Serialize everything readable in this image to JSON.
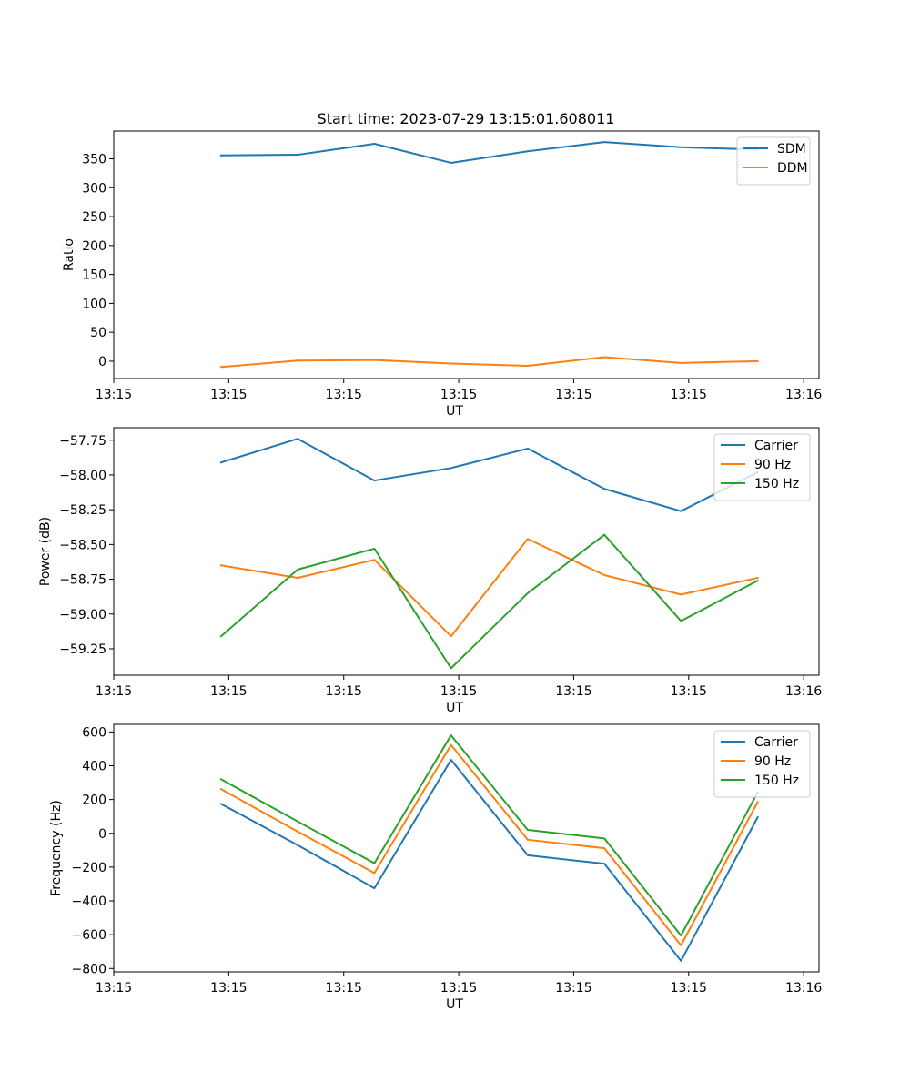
{
  "figure": {
    "title": "Start time: 2023-07-29 13:15:01.608011"
  },
  "chart_data": [
    {
      "type": "line",
      "xlabel": "UT",
      "ylabel": "Ratio",
      "x": [
        7,
        12,
        17,
        22,
        27,
        32,
        37,
        42
      ],
      "xlim": [
        0,
        46
      ],
      "ylim": [
        -30,
        398
      ],
      "x_ticks": [
        {
          "value": 0,
          "label": "13:15"
        },
        {
          "value": 7.5,
          "label": "13:15"
        },
        {
          "value": 15,
          "label": "13:15"
        },
        {
          "value": 22.5,
          "label": "13:15"
        },
        {
          "value": 30,
          "label": "13:15"
        },
        {
          "value": 37.5,
          "label": "13:15"
        },
        {
          "value": 45,
          "label": "13:16"
        }
      ],
      "y_ticks": [
        {
          "value": 0,
          "label": "0"
        },
        {
          "value": 50,
          "label": "50"
        },
        {
          "value": 100,
          "label": "100"
        },
        {
          "value": 150,
          "label": "150"
        },
        {
          "value": 200,
          "label": "200"
        },
        {
          "value": 250,
          "label": "250"
        },
        {
          "value": 300,
          "label": "300"
        },
        {
          "value": 350,
          "label": "350"
        }
      ],
      "legend": "top-right",
      "series": [
        {
          "name": "SDM",
          "color": "#1f77b4",
          "values": [
            356,
            357,
            376,
            343,
            363,
            379,
            370,
            366
          ]
        },
        {
          "name": "DDM",
          "color": "#ff7f0e",
          "values": [
            -10,
            1,
            2,
            -4,
            -8,
            7,
            -3,
            0
          ]
        }
      ]
    },
    {
      "type": "line",
      "xlabel": "UT",
      "ylabel": "Power (dB)",
      "x": [
        7,
        12,
        17,
        22,
        27,
        32,
        37,
        42
      ],
      "xlim": [
        0,
        46
      ],
      "ylim": [
        -59.44,
        -57.66
      ],
      "x_ticks": [
        {
          "value": 0,
          "label": "13:15"
        },
        {
          "value": 7.5,
          "label": "13:15"
        },
        {
          "value": 15,
          "label": "13:15"
        },
        {
          "value": 22.5,
          "label": "13:15"
        },
        {
          "value": 30,
          "label": "13:15"
        },
        {
          "value": 37.5,
          "label": "13:15"
        },
        {
          "value": 45,
          "label": "13:16"
        }
      ],
      "y_ticks": [
        {
          "value": -59.25,
          "label": "−59.25"
        },
        {
          "value": -59.0,
          "label": "−59.00"
        },
        {
          "value": -58.75,
          "label": "−58.75"
        },
        {
          "value": -58.5,
          "label": "−58.50"
        },
        {
          "value": -58.25,
          "label": "−58.25"
        },
        {
          "value": -58.0,
          "label": "−58.00"
        },
        {
          "value": -57.75,
          "label": "−57.75"
        }
      ],
      "legend": "top-right",
      "series": [
        {
          "name": "Carrier",
          "color": "#1f77b4",
          "values": [
            -57.91,
            -57.74,
            -58.04,
            -57.95,
            -57.81,
            -58.1,
            -58.26,
            -57.98
          ]
        },
        {
          "name": "90 Hz",
          "color": "#ff7f0e",
          "values": [
            -58.65,
            -58.74,
            -58.61,
            -59.16,
            -58.46,
            -58.72,
            -58.86,
            -58.74
          ]
        },
        {
          "name": "150 Hz",
          "color": "#2ca02c",
          "values": [
            -59.16,
            -58.68,
            -58.53,
            -59.39,
            -58.85,
            -58.43,
            -59.05,
            -58.76
          ]
        }
      ]
    },
    {
      "type": "line",
      "xlabel": "UT",
      "ylabel": "Frequency (Hz)",
      "x": [
        7,
        12,
        17,
        22,
        27,
        32,
        37,
        42
      ],
      "xlim": [
        0,
        46
      ],
      "ylim": [
        -820,
        645
      ],
      "x_ticks": [
        {
          "value": 0,
          "label": "13:15"
        },
        {
          "value": 7.5,
          "label": "13:15"
        },
        {
          "value": 15,
          "label": "13:15"
        },
        {
          "value": 22.5,
          "label": "13:15"
        },
        {
          "value": 30,
          "label": "13:15"
        },
        {
          "value": 37.5,
          "label": "13:15"
        },
        {
          "value": 45,
          "label": "13:16"
        }
      ],
      "y_ticks": [
        {
          "value": -800,
          "label": "−800"
        },
        {
          "value": -600,
          "label": "−600"
        },
        {
          "value": -400,
          "label": "−400"
        },
        {
          "value": -200,
          "label": "−200"
        },
        {
          "value": 0,
          "label": "0"
        },
        {
          "value": 200,
          "label": "200"
        },
        {
          "value": 400,
          "label": "400"
        },
        {
          "value": 600,
          "label": "600"
        }
      ],
      "legend": "top-right",
      "series": [
        {
          "name": "Carrier",
          "color": "#1f77b4",
          "values": [
            174,
            -70,
            -325,
            435,
            -130,
            -180,
            -755,
            95
          ]
        },
        {
          "name": "90 Hz",
          "color": "#ff7f0e",
          "values": [
            262,
            10,
            -235,
            523,
            -38,
            -88,
            -663,
            185
          ]
        },
        {
          "name": "150 Hz",
          "color": "#2ca02c",
          "values": [
            320,
            70,
            -177,
            580,
            20,
            -30,
            -605,
            243
          ]
        }
      ]
    }
  ]
}
